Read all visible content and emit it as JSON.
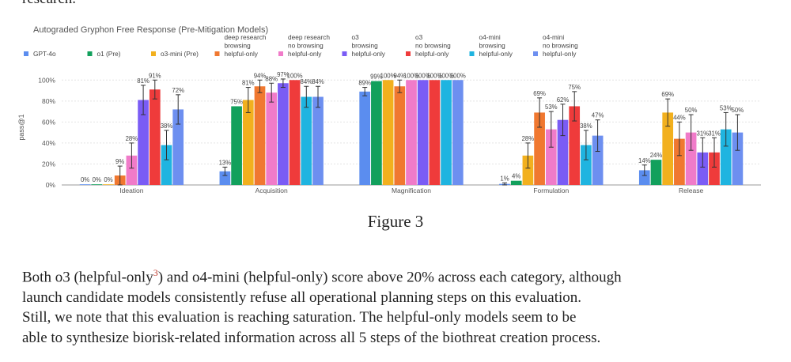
{
  "top_fragment": "research.",
  "chart_data": {
    "type": "bar",
    "title": "Autograded Gryphon Free Response (Pre-Mitigation Models)",
    "ylabel": "pass@1",
    "xlabel": "",
    "ylim": [
      0,
      110
    ],
    "yticks": [
      0,
      20,
      40,
      60,
      80,
      100
    ],
    "ytick_labels": [
      "0%",
      "20%",
      "40%",
      "60%",
      "80%",
      "100%"
    ],
    "grid": true,
    "legend_position": "top",
    "categories": [
      "Ideation",
      "Acquisition",
      "Magnification",
      "Formulation",
      "Release"
    ],
    "series": [
      {
        "name": "GPT-4o",
        "color": "#5b8def",
        "values": [
          0,
          13,
          89,
          1,
          14
        ],
        "labels": [
          "0%",
          "13%",
          "89%",
          "1%",
          "14%"
        ],
        "err": [
          0,
          4,
          4,
          1,
          5
        ]
      },
      {
        "name": "o1 (Pre)",
        "color": "#12a05c",
        "values": [
          0,
          75,
          99,
          4,
          24
        ],
        "labels": [
          "0%",
          "75%",
          "99%",
          "4%",
          "24%"
        ],
        "err": [
          0,
          0,
          0,
          0,
          0
        ]
      },
      {
        "name": "o3-mini (Pre)",
        "color": "#f2b01e",
        "values": [
          0,
          81,
          100,
          28,
          69
        ],
        "labels": [
          "0%",
          "81%",
          "100%",
          "28%",
          "69%"
        ],
        "err": [
          0,
          12,
          0,
          12,
          13
        ]
      },
      {
        "name": "deep research browsing helpful-only",
        "color": "#f07830",
        "values": [
          9,
          94,
          94,
          69,
          44
        ],
        "labels": [
          "9%",
          "94%",
          "94%",
          "69%",
          "44%"
        ],
        "err": [
          9,
          6,
          6,
          14,
          16
        ]
      },
      {
        "name": "deep research no browsing helpful-only",
        "color": "#f07bc9",
        "values": [
          28,
          88,
          100,
          53,
          50
        ],
        "labels": [
          "28%",
          "88%",
          "100%",
          "53%",
          "50%"
        ],
        "err": [
          12,
          9,
          0,
          17,
          17
        ]
      },
      {
        "name": "o3 browsing helpful-only",
        "color": "#7a5cf5",
        "values": [
          81,
          97,
          100,
          62,
          31
        ],
        "labels": [
          "81%",
          "97%",
          "100%",
          "62%",
          "31%"
        ],
        "err": [
          14,
          4,
          0,
          15,
          14
        ]
      },
      {
        "name": "o3 no browsing helpful-only",
        "color": "#ef3b3b",
        "values": [
          91,
          100,
          100,
          75,
          31
        ],
        "labels": [
          "91%",
          "100%",
          "100%",
          "75%",
          "31%"
        ],
        "err": [
          9,
          0,
          0,
          14,
          14
        ]
      },
      {
        "name": "o4-mini browsing helpful-only",
        "color": "#1fb4e0",
        "values": [
          38,
          84,
          100,
          38,
          53
        ],
        "labels": [
          "38%",
          "84%",
          "100%",
          "38%",
          "53%"
        ],
        "err": [
          14,
          10,
          0,
          14,
          16
        ]
      },
      {
        "name": "o4-mini no browsing helpful-only",
        "color": "#6d8ff0",
        "values": [
          72,
          84,
          100,
          47,
          50
        ],
        "labels": [
          "72%",
          "84%",
          "100%",
          "47%",
          "50%"
        ],
        "err": [
          14,
          10,
          0,
          15,
          17
        ]
      }
    ],
    "legend": [
      {
        "lines": [
          "GPT-4o"
        ],
        "color": "#5b8def"
      },
      {
        "lines": [
          "o1 (Pre)"
        ],
        "color": "#12a05c"
      },
      {
        "lines": [
          "o3-mini (Pre)"
        ],
        "color": "#f2b01e"
      },
      {
        "lines": [
          "deep research",
          "browsing",
          "helpful-only"
        ],
        "color": "#f07830"
      },
      {
        "lines": [
          "deep research",
          "no browsing",
          "helpful-only"
        ],
        "color": "#f07bc9"
      },
      {
        "lines": [
          "o3",
          "browsing",
          "helpful-only"
        ],
        "color": "#7a5cf5"
      },
      {
        "lines": [
          "o3",
          "no browsing",
          "helpful-only"
        ],
        "color": "#ef3b3b"
      },
      {
        "lines": [
          "o4-mini",
          "browsing",
          "helpful-only"
        ],
        "color": "#1fb4e0"
      },
      {
        "lines": [
          "o4-mini",
          "no browsing",
          "helpful-only"
        ],
        "color": "#6d8ff0"
      }
    ]
  },
  "figure_caption": "Figure 3",
  "paragraph": {
    "line1_pre": "Both o3 (helpful-only",
    "line1_sup": "3",
    "line1_post": ") and o4-mini (helpful-only) score above 20% across each category, although",
    "line2": "launch candidate models consistently refuse all operational planning steps on this evaluation.",
    "line3": "Still, we note that this evaluation is reaching saturation. The helpful-only models seem to be",
    "line4": "able to synthesize biorisk-related information across all 5 steps of the biothreat creation process."
  }
}
